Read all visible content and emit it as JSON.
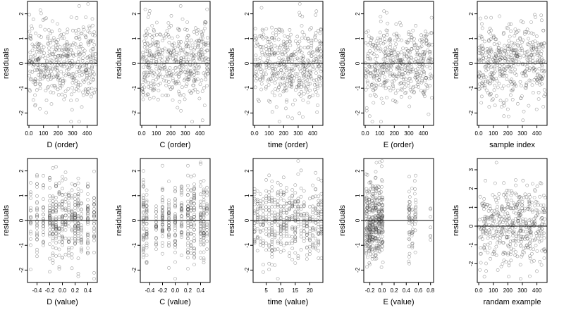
{
  "chart_data": [
    {
      "type": "scatter",
      "xlabel": "D (order)",
      "ylabel": "residuals",
      "xlim": [
        -10,
        470
      ],
      "ylim": [
        -2.5,
        2.5
      ],
      "x_ticks": [
        0,
        100,
        200,
        300,
        400
      ],
      "y_ticks": [
        -2,
        -1,
        0,
        1,
        2
      ],
      "zero_line": true,
      "n_points": 460,
      "x_domain": [
        1,
        460
      ],
      "x_kind": "order",
      "seed": 11
    },
    {
      "type": "scatter",
      "xlabel": "C (order)",
      "ylabel": "residuals",
      "xlim": [
        -10,
        470
      ],
      "ylim": [
        -2.5,
        2.5
      ],
      "x_ticks": [
        0,
        100,
        200,
        300,
        400
      ],
      "y_ticks": [
        -2,
        -1,
        0,
        1,
        2
      ],
      "zero_line": true,
      "n_points": 460,
      "x_domain": [
        1,
        460
      ],
      "x_kind": "order",
      "seed": 23
    },
    {
      "type": "scatter",
      "xlabel": "time (order)",
      "ylabel": "residuals",
      "xlim": [
        -10,
        470
      ],
      "ylim": [
        -2.5,
        2.5
      ],
      "x_ticks": [
        0,
        100,
        200,
        300,
        400
      ],
      "y_ticks": [
        -2,
        -1,
        0,
        1,
        2
      ],
      "zero_line": true,
      "n_points": 460,
      "x_domain": [
        1,
        460
      ],
      "x_kind": "order",
      "seed": 37
    },
    {
      "type": "scatter",
      "xlabel": "E (order)",
      "ylabel": "residuals",
      "xlim": [
        -10,
        470
      ],
      "ylim": [
        -2.5,
        2.5
      ],
      "x_ticks": [
        0,
        100,
        200,
        300,
        400
      ],
      "y_ticks": [
        -2,
        -1,
        0,
        1,
        2
      ],
      "zero_line": true,
      "n_points": 460,
      "x_domain": [
        1,
        460
      ],
      "x_kind": "order",
      "seed": 41
    },
    {
      "type": "scatter",
      "xlabel": "sample index",
      "ylabel": "residuals",
      "xlim": [
        -10,
        470
      ],
      "ylim": [
        -2.5,
        2.5
      ],
      "x_ticks": [
        0,
        100,
        200,
        300,
        400
      ],
      "y_ticks": [
        -2,
        -1,
        0,
        1,
        2
      ],
      "zero_line": true,
      "n_points": 460,
      "x_domain": [
        1,
        460
      ],
      "x_kind": "order",
      "seed": 53
    },
    {
      "type": "scatter",
      "xlabel": "D (value)",
      "ylabel": "residuals",
      "xlim": [
        -0.55,
        0.55
      ],
      "ylim": [
        -2.5,
        2.5
      ],
      "x_ticks": [
        -0.4,
        -0.2,
        0.0,
        0.2,
        0.4
      ],
      "y_ticks": [
        -2,
        -1,
        0,
        1,
        2
      ],
      "zero_line": true,
      "n_points": 460,
      "x_levels": [
        -0.5,
        -0.4,
        -0.3,
        -0.2,
        -0.15,
        -0.1,
        -0.05,
        0.0,
        0.05,
        0.1,
        0.15,
        0.2,
        0.25,
        0.3,
        0.4,
        0.5
      ],
      "x_kind": "levels",
      "seed": 61
    },
    {
      "type": "scatter",
      "xlabel": "C (value)",
      "ylabel": "residuals",
      "xlim": [
        -0.55,
        0.55
      ],
      "ylim": [
        -2.5,
        2.5
      ],
      "x_ticks": [
        -0.4,
        -0.2,
        0.0,
        0.2,
        0.4
      ],
      "y_ticks": [
        -2,
        -1,
        0,
        1,
        2
      ],
      "zero_line": true,
      "n_points": 460,
      "x_levels": [
        -0.5,
        -0.45,
        -0.3,
        -0.2,
        -0.1,
        0.0,
        0.1,
        0.2,
        0.25,
        0.3,
        0.4,
        0.45,
        0.5
      ],
      "x_kind": "levels",
      "seed": 71
    },
    {
      "type": "scatter",
      "xlabel": "time (value)",
      "ylabel": "residuals",
      "xlim": [
        0.5,
        24.5
      ],
      "ylim": [
        -2.5,
        2.5
      ],
      "x_ticks": [
        5,
        10,
        15,
        20
      ],
      "y_ticks": [
        -2,
        -1,
        0,
        1,
        2
      ],
      "zero_line": true,
      "n_points": 460,
      "x_levels": [
        1,
        2,
        3,
        4,
        5,
        6,
        7,
        8,
        9,
        10,
        11,
        12,
        13,
        14,
        15,
        16,
        17,
        18,
        19,
        20,
        21,
        22,
        23,
        24
      ],
      "x_kind": "levels",
      "seed": 83
    },
    {
      "type": "scatter",
      "xlabel": "E (value)",
      "ylabel": "residuals",
      "xlim": [
        -0.3,
        0.85
      ],
      "ylim": [
        -2.5,
        2.5
      ],
      "x_ticks": [
        -0.2,
        0.0,
        0.2,
        0.4,
        0.6,
        0.8
      ],
      "y_ticks": [
        -2,
        -1,
        0,
        1,
        2
      ],
      "zero_line": true,
      "n_points": 460,
      "x_levels": [
        -0.25,
        -0.2,
        -0.15,
        -0.1,
        -0.05,
        0.0,
        0.45,
        0.5,
        0.55,
        0.8
      ],
      "x_kind": "clustered",
      "seed": 97
    },
    {
      "type": "scatter",
      "xlabel": "randam example",
      "ylabel": "residuals",
      "xlim": [
        -10,
        470
      ],
      "ylim": [
        -3.0,
        3.6
      ],
      "x_ticks": [
        0,
        100,
        200,
        300,
        400
      ],
      "y_ticks": [
        -2,
        -1,
        0,
        1,
        2,
        3
      ],
      "zero_line": true,
      "n_points": 460,
      "x_domain": [
        1,
        460
      ],
      "x_kind": "order",
      "seed": 101
    }
  ]
}
